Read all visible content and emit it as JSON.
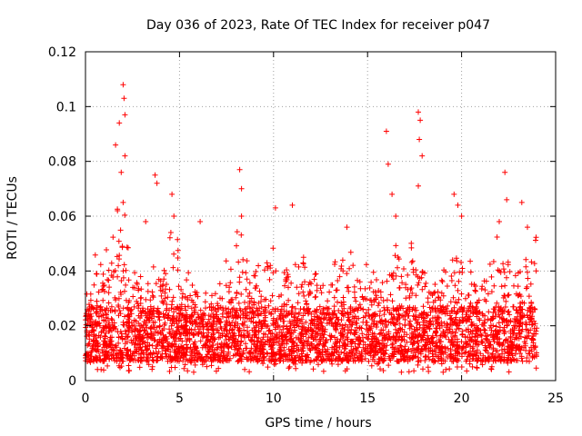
{
  "chart_data": {
    "type": "scatter",
    "title": "Day 036 of 2023, Rate Of TEC Index for receiver p047",
    "xlabel": "GPS time / hours",
    "ylabel": "ROTI / TECUs",
    "xlim": [
      0,
      25
    ],
    "ylim": [
      0,
      0.12
    ],
    "xticks": [
      0,
      5,
      10,
      15,
      20,
      25
    ],
    "xtick_labels": [
      "0",
      "5",
      "10",
      "15",
      "20",
      "25"
    ],
    "yticks": [
      0,
      0.02,
      0.04,
      0.06,
      0.08,
      0.1,
      0.12
    ],
    "ytick_labels": [
      "0",
      "0.02",
      "0.04",
      "0.06",
      "0.08",
      "0.1",
      "0.12"
    ],
    "grid": true,
    "marker": "plus",
    "series": [
      {
        "name": "ROTI",
        "color": "#ff0000",
        "description_density": "dense band of points spanning 0 to 24 h, mostly between 0.005 and 0.03 TECU/s",
        "outliers": [
          [
            1.6,
            0.086
          ],
          [
            1.8,
            0.094
          ],
          [
            1.9,
            0.076
          ],
          [
            2.0,
            0.108
          ],
          [
            2.05,
            0.103
          ],
          [
            2.1,
            0.097
          ],
          [
            2.1,
            0.082
          ],
          [
            2.0,
            0.065
          ],
          [
            1.7,
            0.062
          ],
          [
            3.2,
            0.058
          ],
          [
            3.7,
            0.075
          ],
          [
            3.8,
            0.072
          ],
          [
            4.6,
            0.068
          ],
          [
            4.7,
            0.06
          ],
          [
            6.1,
            0.058
          ],
          [
            8.2,
            0.077
          ],
          [
            8.3,
            0.07
          ],
          [
            8.3,
            0.06
          ],
          [
            10.1,
            0.063
          ],
          [
            11.0,
            0.064
          ],
          [
            13.9,
            0.056
          ],
          [
            16.0,
            0.091
          ],
          [
            16.1,
            0.079
          ],
          [
            16.3,
            0.068
          ],
          [
            16.5,
            0.06
          ],
          [
            17.7,
            0.098
          ],
          [
            17.8,
            0.095
          ],
          [
            17.75,
            0.088
          ],
          [
            17.9,
            0.082
          ],
          [
            17.7,
            0.071
          ],
          [
            19.6,
            0.068
          ],
          [
            19.8,
            0.064
          ],
          [
            20.0,
            0.06
          ],
          [
            22.3,
            0.076
          ],
          [
            22.4,
            0.066
          ],
          [
            23.2,
            0.065
          ],
          [
            22.0,
            0.058
          ],
          [
            23.5,
            0.056
          ]
        ],
        "peak_windows": [
          [
            0.0,
            0.4,
            0.035
          ],
          [
            0.5,
            1.0,
            0.05
          ],
          [
            1.0,
            1.5,
            0.055
          ],
          [
            1.5,
            2.3,
            0.065
          ],
          [
            2.3,
            3.0,
            0.045
          ],
          [
            3.0,
            3.6,
            0.04
          ],
          [
            3.6,
            4.4,
            0.05
          ],
          [
            4.4,
            5.0,
            0.06
          ],
          [
            5.0,
            6.0,
            0.04
          ],
          [
            6.0,
            7.0,
            0.032
          ],
          [
            7.0,
            8.0,
            0.045
          ],
          [
            8.0,
            8.6,
            0.055
          ],
          [
            8.6,
            9.5,
            0.045
          ],
          [
            9.5,
            10.3,
            0.055
          ],
          [
            10.3,
            11.2,
            0.05
          ],
          [
            11.2,
            12.5,
            0.045
          ],
          [
            12.5,
            13.5,
            0.045
          ],
          [
            13.5,
            14.3,
            0.055
          ],
          [
            14.3,
            15.3,
            0.045
          ],
          [
            15.3,
            16.0,
            0.04
          ],
          [
            16.0,
            17.0,
            0.058
          ],
          [
            17.0,
            18.0,
            0.055
          ],
          [
            18.0,
            19.0,
            0.045
          ],
          [
            19.0,
            20.5,
            0.05
          ],
          [
            20.5,
            21.5,
            0.045
          ],
          [
            21.5,
            22.5,
            0.055
          ],
          [
            22.5,
            23.2,
            0.05
          ],
          [
            23.2,
            24.0,
            0.055
          ]
        ]
      }
    ]
  }
}
